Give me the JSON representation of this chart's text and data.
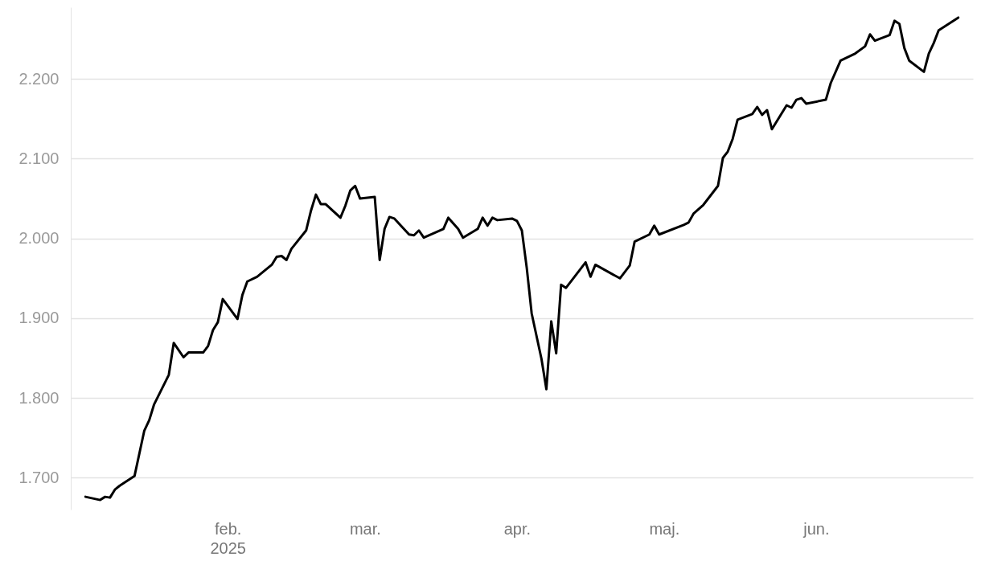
{
  "chart_data": {
    "type": "line",
    "grid": "y",
    "line_style": "solid",
    "marker": "none",
    "xlim": [
      "2024-12-31",
      "2025-07-03"
    ],
    "xticks": [
      {
        "value": "2025-02-01",
        "label": "feb.\n2025"
      },
      {
        "value": "2025-03-01",
        "label": "mar."
      },
      {
        "value": "2025-04-01",
        "label": "apr."
      },
      {
        "value": "2025-05-01",
        "label": "maj."
      },
      {
        "value": "2025-06-01",
        "label": "jun."
      }
    ],
    "ylim": [
      1660,
      2290
    ],
    "yticks": [
      {
        "value": 1700,
        "label": "1.700"
      },
      {
        "value": 1800,
        "label": "1.800"
      },
      {
        "value": 1900,
        "label": "1.900"
      },
      {
        "value": 2000,
        "label": "2.000"
      },
      {
        "value": 2100,
        "label": "2.100"
      },
      {
        "value": 2200,
        "label": "2.200"
      }
    ],
    "x": [
      "2025-01-03",
      "2025-01-06",
      "2025-01-07",
      "2025-01-08",
      "2025-01-09",
      "2025-01-10",
      "2025-01-13",
      "2025-01-15",
      "2025-01-16",
      "2025-01-17",
      "2025-01-20",
      "2025-01-21",
      "2025-01-23",
      "2025-01-24",
      "2025-01-27",
      "2025-01-28",
      "2025-01-29",
      "2025-01-30",
      "2025-01-31",
      "2025-02-03",
      "2025-02-04",
      "2025-02-05",
      "2025-02-07",
      "2025-02-10",
      "2025-02-11",
      "2025-02-12",
      "2025-02-13",
      "2025-02-14",
      "2025-02-17",
      "2025-02-18",
      "2025-02-19",
      "2025-02-20",
      "2025-02-21",
      "2025-02-24",
      "2025-02-25",
      "2025-02-26",
      "2025-02-27",
      "2025-02-28",
      "2025-03-03",
      "2025-03-04",
      "2025-03-05",
      "2025-03-06",
      "2025-03-07",
      "2025-03-10",
      "2025-03-11",
      "2025-03-12",
      "2025-03-13",
      "2025-03-17",
      "2025-03-18",
      "2025-03-20",
      "2025-03-21",
      "2025-03-24",
      "2025-03-25",
      "2025-03-26",
      "2025-03-27",
      "2025-03-28",
      "2025-03-31",
      "2025-04-01",
      "2025-04-02",
      "2025-04-03",
      "2025-04-04",
      "2025-04-06",
      "2025-04-07",
      "2025-04-08",
      "2025-04-09",
      "2025-04-10",
      "2025-04-11",
      "2025-04-14",
      "2025-04-15",
      "2025-04-16",
      "2025-04-17",
      "2025-04-22",
      "2025-04-24",
      "2025-04-25",
      "2025-04-28",
      "2025-04-29",
      "2025-04-30",
      "2025-05-05",
      "2025-05-06",
      "2025-05-07",
      "2025-05-09",
      "2025-05-12",
      "2025-05-13",
      "2025-05-14",
      "2025-05-15",
      "2025-05-16",
      "2025-05-19",
      "2025-05-20",
      "2025-05-21",
      "2025-05-22",
      "2025-05-23",
      "2025-05-26",
      "2025-05-27",
      "2025-05-28",
      "2025-05-29",
      "2025-05-30",
      "2025-06-03",
      "2025-06-04",
      "2025-06-06",
      "2025-06-09",
      "2025-06-11",
      "2025-06-12",
      "2025-06-13",
      "2025-06-16",
      "2025-06-17",
      "2025-06-18",
      "2025-06-19",
      "2025-06-20",
      "2025-06-23",
      "2025-06-24",
      "2025-06-25",
      "2025-06-26",
      "2025-06-30"
    ],
    "series": [
      {
        "color": "#000000",
        "values": [
          1676,
          1672,
          1676,
          1675,
          1685,
          1690,
          1702,
          1759,
          1772,
          1792,
          1829,
          1869,
          1851,
          1857,
          1857,
          1865,
          1885,
          1895,
          1924,
          1899,
          1929,
          1946,
          1952,
          1967,
          1977,
          1978,
          1973,
          1987,
          2010,
          2035,
          2055,
          2043,
          2043,
          2026,
          2041,
          2060,
          2066,
          2050,
          2052,
          1973,
          2012,
          2027,
          2025,
          2005,
          2004,
          2010,
          2001,
          2012,
          2026,
          2012,
          2001,
          2012,
          2026,
          2016,
          2026,
          2023,
          2025,
          2022,
          2010,
          1963,
          1906,
          1849,
          1811,
          1896,
          1856,
          1942,
          1938,
          1962,
          1970,
          1952,
          1967,
          1950,
          1966,
          1996,
          2005,
          2016,
          2005,
          2017,
          2020,
          2031,
          2042,
          2066,
          2101,
          2109,
          2125,
          2149,
          2156,
          2165,
          2155,
          2161,
          2137,
          2167,
          2164,
          2174,
          2176,
          2169,
          2174,
          2195,
          2223,
          2232,
          2241,
          2256,
          2248,
          2255,
          2273,
          2269,
          2239,
          2223,
          2209,
          2232,
          2245,
          2261,
          2277
        ]
      }
    ]
  }
}
